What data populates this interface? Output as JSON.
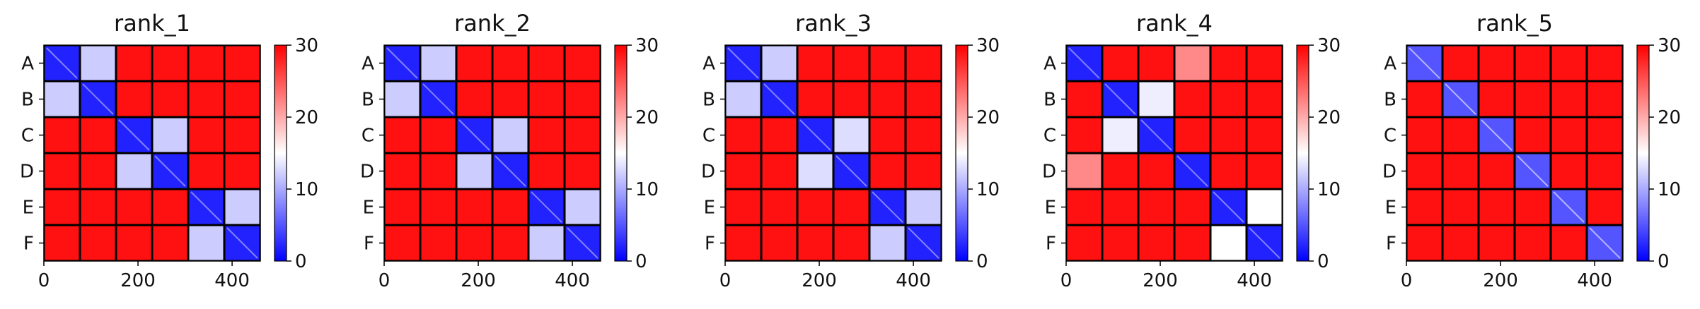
{
  "figure": {
    "panels_count": 5,
    "colorbar": {
      "min": 0,
      "max": 30,
      "ticks": [
        0,
        10,
        20,
        30
      ],
      "colormap": "bwr",
      "colors": {
        "low": "#0000ff",
        "mid": "#ffffff",
        "high": "#ff0000"
      }
    }
  },
  "chart_data": [
    {
      "type": "heatmap",
      "title": "rank_1",
      "row_labels": [
        "A",
        "B",
        "C",
        "D",
        "E",
        "F"
      ],
      "x_ticks": [
        0,
        200,
        400
      ],
      "xlim": [
        0,
        460
      ],
      "block_values": [
        [
          2,
          12,
          29,
          29,
          29,
          29
        ],
        [
          12,
          2,
          29,
          29,
          29,
          29
        ],
        [
          29,
          29,
          2,
          12,
          29,
          29
        ],
        [
          29,
          29,
          12,
          2,
          29,
          29
        ],
        [
          29,
          29,
          29,
          29,
          2,
          12
        ],
        [
          29,
          29,
          29,
          29,
          12,
          2
        ]
      ]
    },
    {
      "type": "heatmap",
      "title": "rank_2",
      "row_labels": [
        "A",
        "B",
        "C",
        "D",
        "E",
        "F"
      ],
      "x_ticks": [
        0,
        200,
        400
      ],
      "xlim": [
        0,
        460
      ],
      "block_values": [
        [
          2,
          12,
          29,
          29,
          29,
          29
        ],
        [
          12,
          2,
          29,
          29,
          29,
          29
        ],
        [
          29,
          29,
          2,
          12,
          29,
          29
        ],
        [
          29,
          29,
          12,
          2,
          29,
          29
        ],
        [
          29,
          29,
          29,
          29,
          2,
          12
        ],
        [
          29,
          29,
          29,
          29,
          12,
          2
        ]
      ]
    },
    {
      "type": "heatmap",
      "title": "rank_3",
      "row_labels": [
        "A",
        "B",
        "C",
        "D",
        "E",
        "F"
      ],
      "x_ticks": [
        0,
        200,
        400
      ],
      "xlim": [
        0,
        460
      ],
      "block_values": [
        [
          2,
          12,
          29,
          29,
          29,
          29
        ],
        [
          12,
          2,
          29,
          29,
          29,
          29
        ],
        [
          29,
          29,
          2,
          13,
          29,
          29
        ],
        [
          29,
          29,
          13,
          2,
          29,
          29
        ],
        [
          29,
          29,
          29,
          29,
          2,
          12
        ],
        [
          29,
          29,
          29,
          29,
          12,
          2
        ]
      ]
    },
    {
      "type": "heatmap",
      "title": "rank_4",
      "row_labels": [
        "A",
        "B",
        "C",
        "D",
        "E",
        "F"
      ],
      "x_ticks": [
        0,
        200,
        400
      ],
      "xlim": [
        0,
        460
      ],
      "block_values": [
        [
          2,
          29,
          29,
          22,
          29,
          29
        ],
        [
          29,
          2,
          14,
          29,
          29,
          29
        ],
        [
          29,
          14,
          2,
          29,
          29,
          29
        ],
        [
          22,
          29,
          29,
          2,
          29,
          29
        ],
        [
          29,
          29,
          29,
          29,
          2,
          15
        ],
        [
          29,
          29,
          29,
          29,
          15,
          2
        ]
      ]
    },
    {
      "type": "heatmap",
      "title": "rank_5",
      "row_labels": [
        "A",
        "B",
        "C",
        "D",
        "E",
        "F"
      ],
      "x_ticks": [
        0,
        200,
        400
      ],
      "xlim": [
        0,
        460
      ],
      "block_values": [
        [
          5,
          29,
          29,
          29,
          29,
          29
        ],
        [
          29,
          5,
          29,
          29,
          29,
          29
        ],
        [
          29,
          29,
          5,
          29,
          29,
          29
        ],
        [
          29,
          29,
          29,
          5,
          29,
          29
        ],
        [
          29,
          29,
          29,
          29,
          5,
          29
        ],
        [
          29,
          29,
          29,
          29,
          29,
          5
        ]
      ]
    }
  ]
}
